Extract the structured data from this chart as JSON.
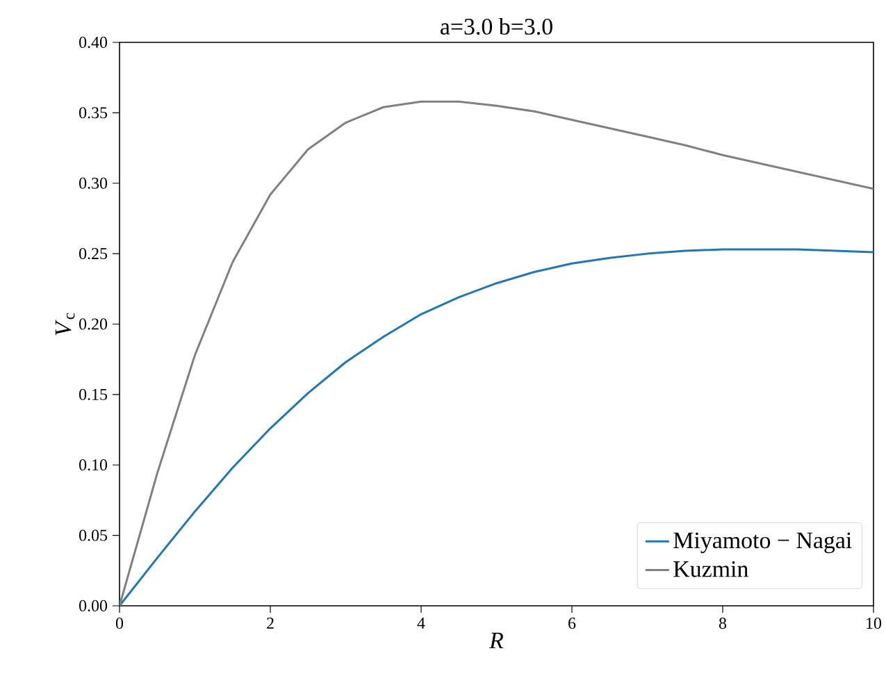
{
  "chart_data": {
    "type": "line",
    "title": "a=3.0 b=3.0",
    "xlabel": "*R*",
    "ylabel": "*V*$_{c}$",
    "x": [
      0,
      0.5,
      1,
      1.5,
      2,
      2.5,
      3,
      3.5,
      4,
      4.5,
      5,
      5.5,
      6,
      6.5,
      7,
      7.5,
      8,
      8.5,
      9,
      9.5,
      10
    ],
    "series": [
      {
        "name": "Miyamoto − Nagai",
        "color": "#1f77b4",
        "values": [
          0,
          0.034,
          0.067,
          0.098,
          0.126,
          0.151,
          0.173,
          0.191,
          0.207,
          0.219,
          0.229,
          0.237,
          0.243,
          0.247,
          0.25,
          0.252,
          0.253,
          0.253,
          0.253,
          0.252,
          0.251
        ]
      },
      {
        "name": "Kuzmin",
        "color": "#808080",
        "values": [
          0,
          0.094,
          0.178,
          0.244,
          0.292,
          0.324,
          0.343,
          0.354,
          0.358,
          0.358,
          0.355,
          0.351,
          0.345,
          0.339,
          0.333,
          0.327,
          0.32,
          0.314,
          0.308,
          0.302,
          0.296
        ]
      }
    ],
    "xlim": [
      0,
      10
    ],
    "ylim": [
      0,
      0.4
    ],
    "xticks": [
      0,
      2,
      4,
      6,
      8,
      10
    ],
    "yticks": [
      {
        "value": 0,
        "label": "0.00"
      },
      {
        "value": 0.05,
        "label": "0.05"
      },
      {
        "value": 0.1,
        "label": "0.10"
      },
      {
        "value": 0.15,
        "label": "0.15"
      },
      {
        "value": 0.2,
        "label": "0.20"
      },
      {
        "value": 0.25,
        "label": "0.25"
      },
      {
        "value": 0.3,
        "label": "0.30"
      },
      {
        "value": 0.35,
        "label": "0.35"
      },
      {
        "value": 0.4,
        "label": "0.40"
      }
    ],
    "grid": false,
    "legend": "bottom right",
    "line_style": "solid"
  }
}
